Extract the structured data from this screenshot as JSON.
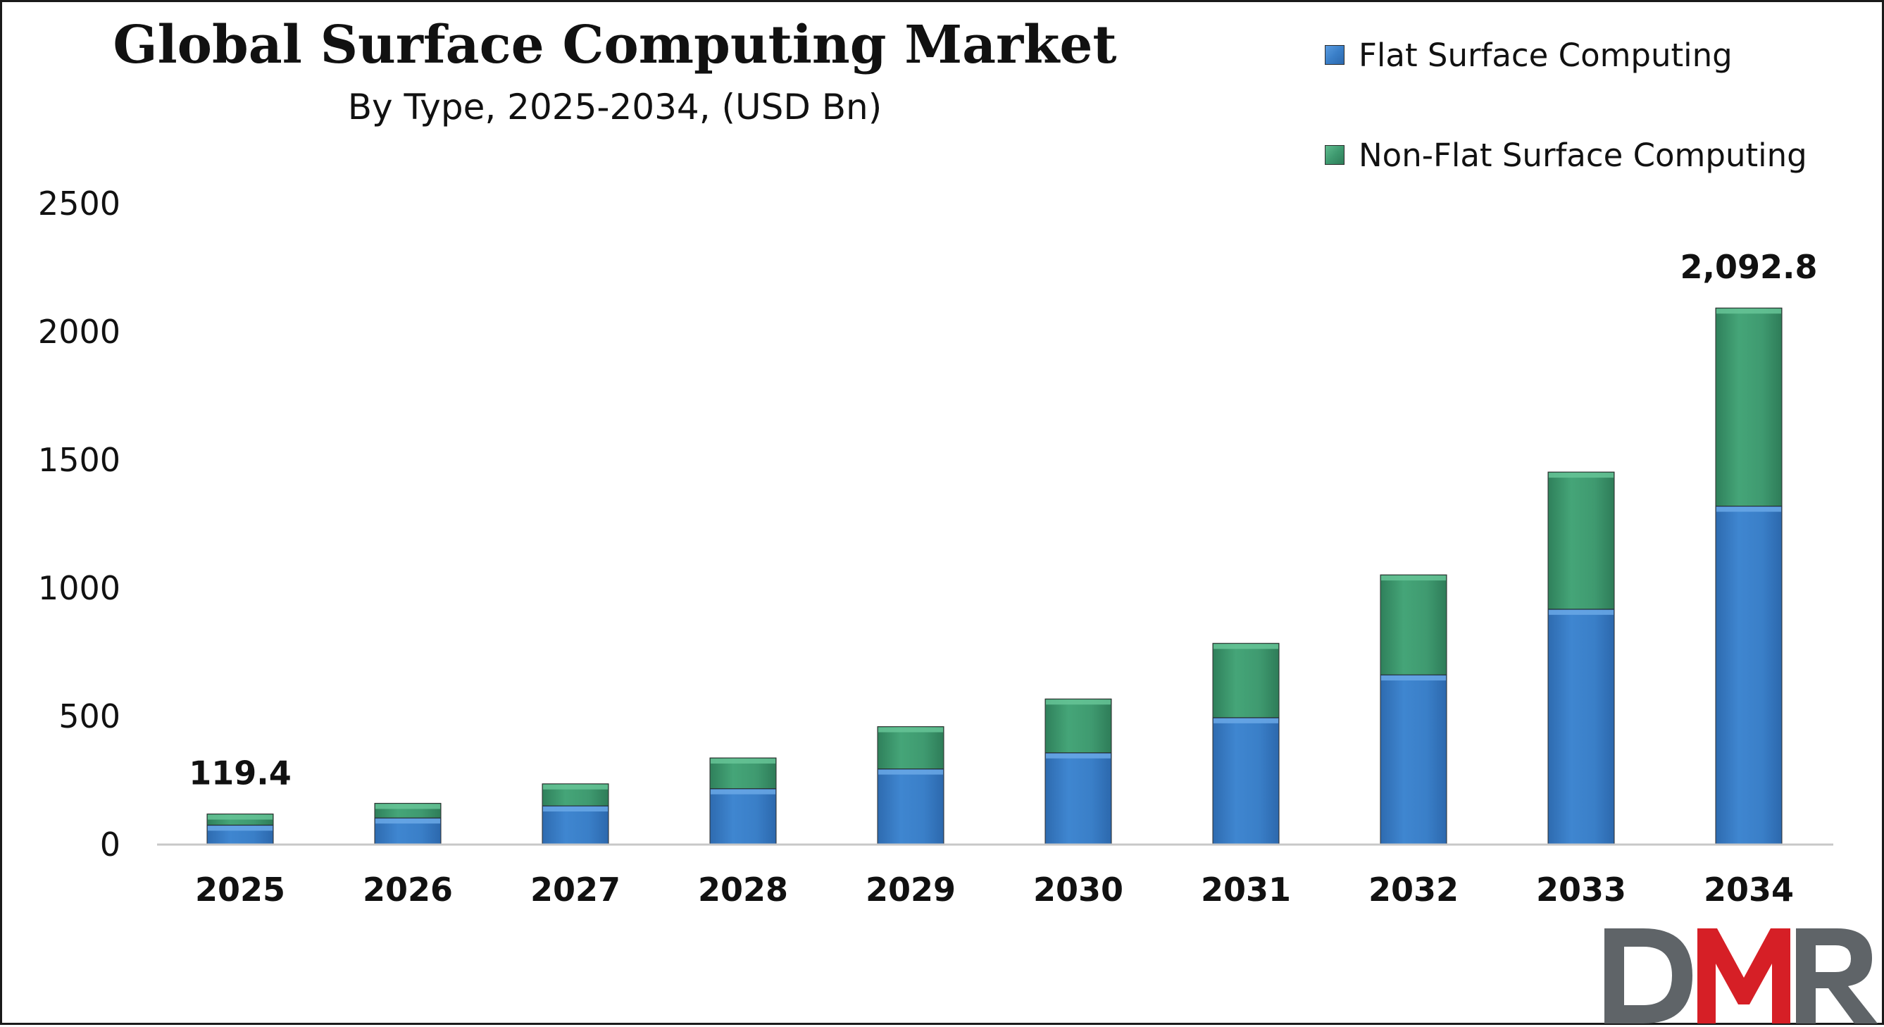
{
  "header": {
    "title": "Global Surface Computing Market",
    "subtitle": "By Type, 2025-2034, (USD Bn)"
  },
  "logo": {
    "text": "DMR",
    "colors": {
      "d": "#5f6468",
      "m": "#d61f26",
      "r": "#5f6468"
    }
  },
  "chart_data": {
    "type": "bar",
    "stacked": true,
    "categories": [
      "2025",
      "2026",
      "2027",
      "2028",
      "2029",
      "2030",
      "2031",
      "2032",
      "2033",
      "2034"
    ],
    "series": [
      {
        "name": "Flat Surface Computing",
        "color": "#3a7fc8",
        "values": [
          76,
          104,
          151,
          218,
          295,
          358,
          495,
          662,
          918,
          1320
        ]
      },
      {
        "name": "Non-Flat Surface Computing",
        "color": "#3f9a70",
        "values": [
          43.4,
          57,
          86,
          120,
          165,
          210,
          290,
          390,
          535,
          772.8
        ]
      }
    ],
    "yticks": [
      "0",
      "500",
      "1000",
      "1500",
      "2000",
      "2500"
    ],
    "ylim": [
      0,
      2500
    ],
    "data_labels": [
      {
        "category": "2025",
        "text": "119.4"
      },
      {
        "category": "2034",
        "text": "2,092.8"
      }
    ],
    "xlabel": "",
    "ylabel": "",
    "legend_position": "top-right",
    "grid": false
  }
}
